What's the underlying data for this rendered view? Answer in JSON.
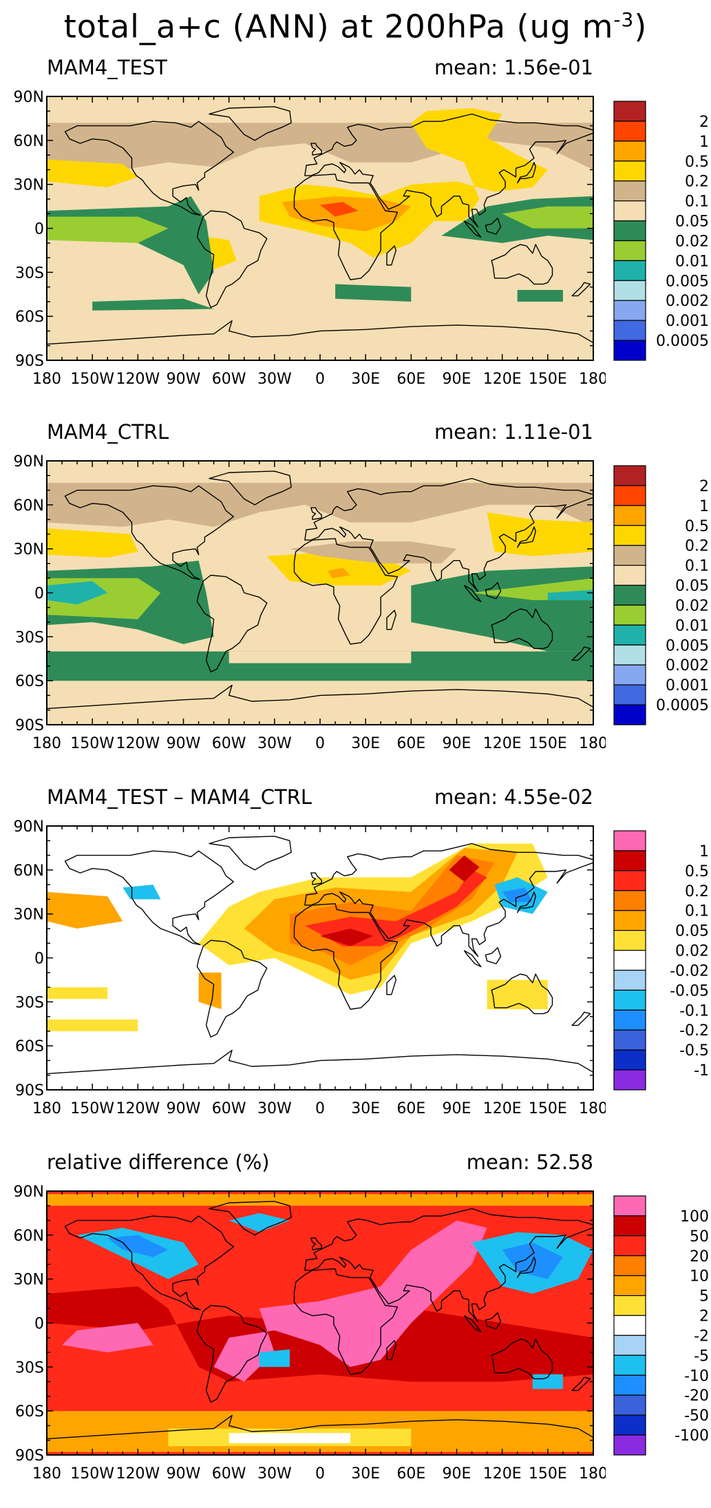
{
  "figure": {
    "title_main": "total_a+c (ANN) at 200hPa (ug m",
    "title_sup": "-3",
    "title_end": ")"
  },
  "axes": {
    "lon_ticks": [
      "180",
      "150W",
      "120W",
      "90W",
      "60W",
      "30W",
      "0",
      "30E",
      "60E",
      "90E",
      "120E",
      "150E",
      "180"
    ],
    "lat_ticks": [
      "90N",
      "60N",
      "30N",
      "0",
      "30S",
      "60S",
      "90S"
    ]
  },
  "panels": [
    {
      "title": "MAM4_TEST",
      "mean_label": "mean: 1.56e-01",
      "style": "abs_test",
      "colorbar": {
        "labels": [
          "2",
          "1",
          "0.5",
          "0.2",
          "0.1",
          "0.05",
          "0.02",
          "0.01",
          "0.005",
          "0.002",
          "0.001",
          "0.0005"
        ],
        "colors": [
          "#b22222",
          "#ff4500",
          "#ffa500",
          "#ffd700",
          "#d2b48c",
          "#f5deb3",
          "#2e8b57",
          "#9acd32",
          "#20b2aa",
          "#b0e0e6",
          "#87a8f0",
          "#4169e1",
          "#0000cd"
        ]
      }
    },
    {
      "title": "MAM4_CTRL",
      "mean_label": "mean: 1.11e-01",
      "style": "abs_ctrl",
      "colorbar": {
        "labels": [
          "2",
          "1",
          "0.5",
          "0.2",
          "0.1",
          "0.05",
          "0.02",
          "0.01",
          "0.005",
          "0.002",
          "0.001",
          "0.0005"
        ],
        "colors": [
          "#b22222",
          "#ff4500",
          "#ffa500",
          "#ffd700",
          "#d2b48c",
          "#f5deb3",
          "#2e8b57",
          "#9acd32",
          "#20b2aa",
          "#b0e0e6",
          "#87a8f0",
          "#4169e1",
          "#0000cd"
        ]
      }
    },
    {
      "title": "MAM4_TEST – MAM4_CTRL",
      "mean_label": "mean: 4.55e-02",
      "style": "diff",
      "colorbar": {
        "labels": [
          "1",
          "0.5",
          "0.2",
          "0.1",
          "0.05",
          "0.02",
          "-0.02",
          "-0.05",
          "-0.1",
          "-0.2",
          "-0.5",
          "-1"
        ],
        "colors": [
          "#ff69b4",
          "#cc0000",
          "#ff2a1a",
          "#ff7f00",
          "#ffa500",
          "#ffe135",
          "#ffffff",
          "#a7d3f5",
          "#1ec0f0",
          "#1e8fff",
          "#3a62dd",
          "#0b2fc8",
          "#8a2be2"
        ]
      }
    },
    {
      "title": "relative difference (%)",
      "mean_label": "mean: 52.58",
      "style": "rel",
      "colorbar": {
        "labels": [
          "100",
          "50",
          "20",
          "10",
          "5",
          "2",
          "-2",
          "-5",
          "-10",
          "-20",
          "-50",
          "-100"
        ],
        "colors": [
          "#ff69b4",
          "#cc0000",
          "#ff2a1a",
          "#ff7f00",
          "#ffa500",
          "#ffe135",
          "#ffffff",
          "#a7d3f5",
          "#1ec0f0",
          "#1e8fff",
          "#3a62dd",
          "#0b2fc8",
          "#8a2be2"
        ]
      }
    }
  ]
}
